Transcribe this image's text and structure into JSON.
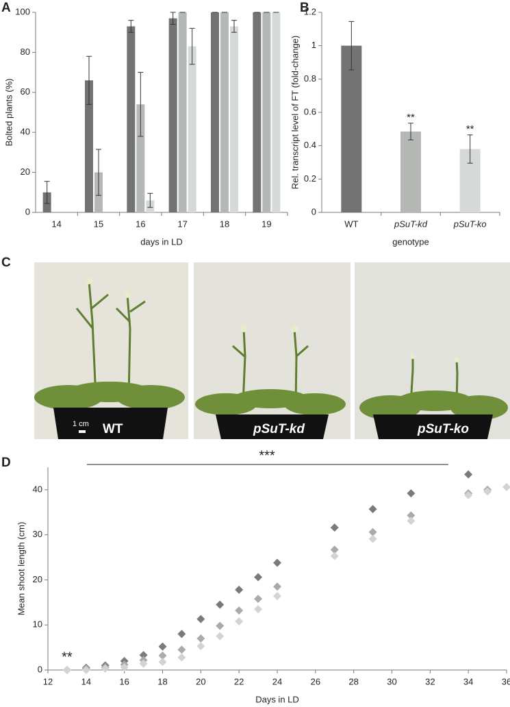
{
  "panel_labels": [
    "A",
    "B",
    "C",
    "D"
  ],
  "chart_data": [
    {
      "type": "grouped-bar",
      "ylabel": "Bolted plants (%)",
      "xlabel": "days in LD",
      "categories": [
        "14",
        "15",
        "16",
        "17",
        "18",
        "19"
      ],
      "ylim": [
        0,
        100
      ],
      "yticks": [
        0,
        20,
        40,
        60,
        80,
        100
      ],
      "series": [
        {
          "color": "#737373",
          "values": [
            10,
            66,
            93,
            97,
            100,
            100
          ],
          "errors": [
            5.5,
            12,
            3,
            3,
            0,
            0
          ]
        },
        {
          "color": "#b4b9b6",
          "values": [
            0,
            20,
            54,
            100,
            100,
            100
          ],
          "errors": [
            0,
            11.5,
            16,
            0,
            0,
            0
          ]
        },
        {
          "color": "#d5dad8",
          "values": [
            0,
            0,
            6,
            83,
            93,
            100
          ],
          "errors": [
            0,
            0,
            3.5,
            9,
            3,
            0
          ]
        }
      ]
    },
    {
      "type": "bar",
      "ylabel": "Rel. transcript level of FT (fold-change)",
      "xlabel": "genotype",
      "categories": [
        "WT",
        "pSuT-kd",
        "pSuT-ko"
      ],
      "values": [
        1.0,
        0.485,
        0.38
      ],
      "errors": [
        0.145,
        0.05,
        0.085
      ],
      "colors": [
        "#737373",
        "#b4b9b6",
        "#d5dad8"
      ],
      "ylim": [
        0,
        1.2
      ],
      "yticks": [
        0,
        0.2,
        0.4,
        0.6,
        0.8,
        1,
        1.2
      ],
      "annotations": [
        {
          "text": "**",
          "category": "pSuT-kd"
        },
        {
          "text": "**",
          "category": "pSuT-ko"
        }
      ]
    },
    {
      "type": "scatter",
      "ylabel": "Mean shoot length (cm)",
      "xlabel": "Days in LD",
      "xlim": [
        12,
        36
      ],
      "xticks": [
        12,
        14,
        16,
        18,
        20,
        22,
        24,
        26,
        28,
        30,
        32,
        34,
        36
      ],
      "ylim": [
        0,
        45
      ],
      "yticks": [
        0,
        10,
        20,
        30,
        40
      ],
      "annotations": [
        "**",
        "***"
      ],
      "series": [
        {
          "color": "#7a7a7a",
          "x": [
            13,
            14,
            15,
            16,
            17,
            18,
            19,
            20,
            21,
            22,
            23,
            24,
            27,
            29,
            31,
            34
          ],
          "values": [
            0,
            0.5,
            1,
            2,
            3.3,
            5.2,
            8,
            11.3,
            14.5,
            17.8,
            20.6,
            23.8,
            31.6,
            35.7,
            39.2,
            43.4
          ]
        },
        {
          "color": "#aaaaaa",
          "x": [
            13,
            14,
            15,
            16,
            17,
            18,
            19,
            20,
            21,
            22,
            23,
            24,
            27,
            29,
            31,
            34,
            35
          ],
          "values": [
            0,
            0.3,
            0.6,
            1.2,
            2.2,
            3.2,
            4.5,
            7,
            9.8,
            13.2,
            15.8,
            18.5,
            26.7,
            30.6,
            34.3,
            39.2,
            40
          ]
        },
        {
          "color": "#d0d5d3",
          "x": [
            13,
            14,
            15,
            16,
            17,
            18,
            19,
            20,
            21,
            22,
            23,
            24,
            27,
            29,
            31,
            34,
            35,
            36
          ],
          "values": [
            0,
            0,
            0.3,
            0.6,
            1.4,
            1.8,
            2.8,
            5.3,
            7.5,
            10.8,
            13.5,
            16.4,
            25.3,
            29.1,
            33.1,
            38.8,
            39.6,
            40.6
          ]
        }
      ]
    }
  ],
  "photos": {
    "labels": [
      "WT",
      "pSuT-kd",
      "pSuT-ko"
    ],
    "scale": "1 cm"
  }
}
